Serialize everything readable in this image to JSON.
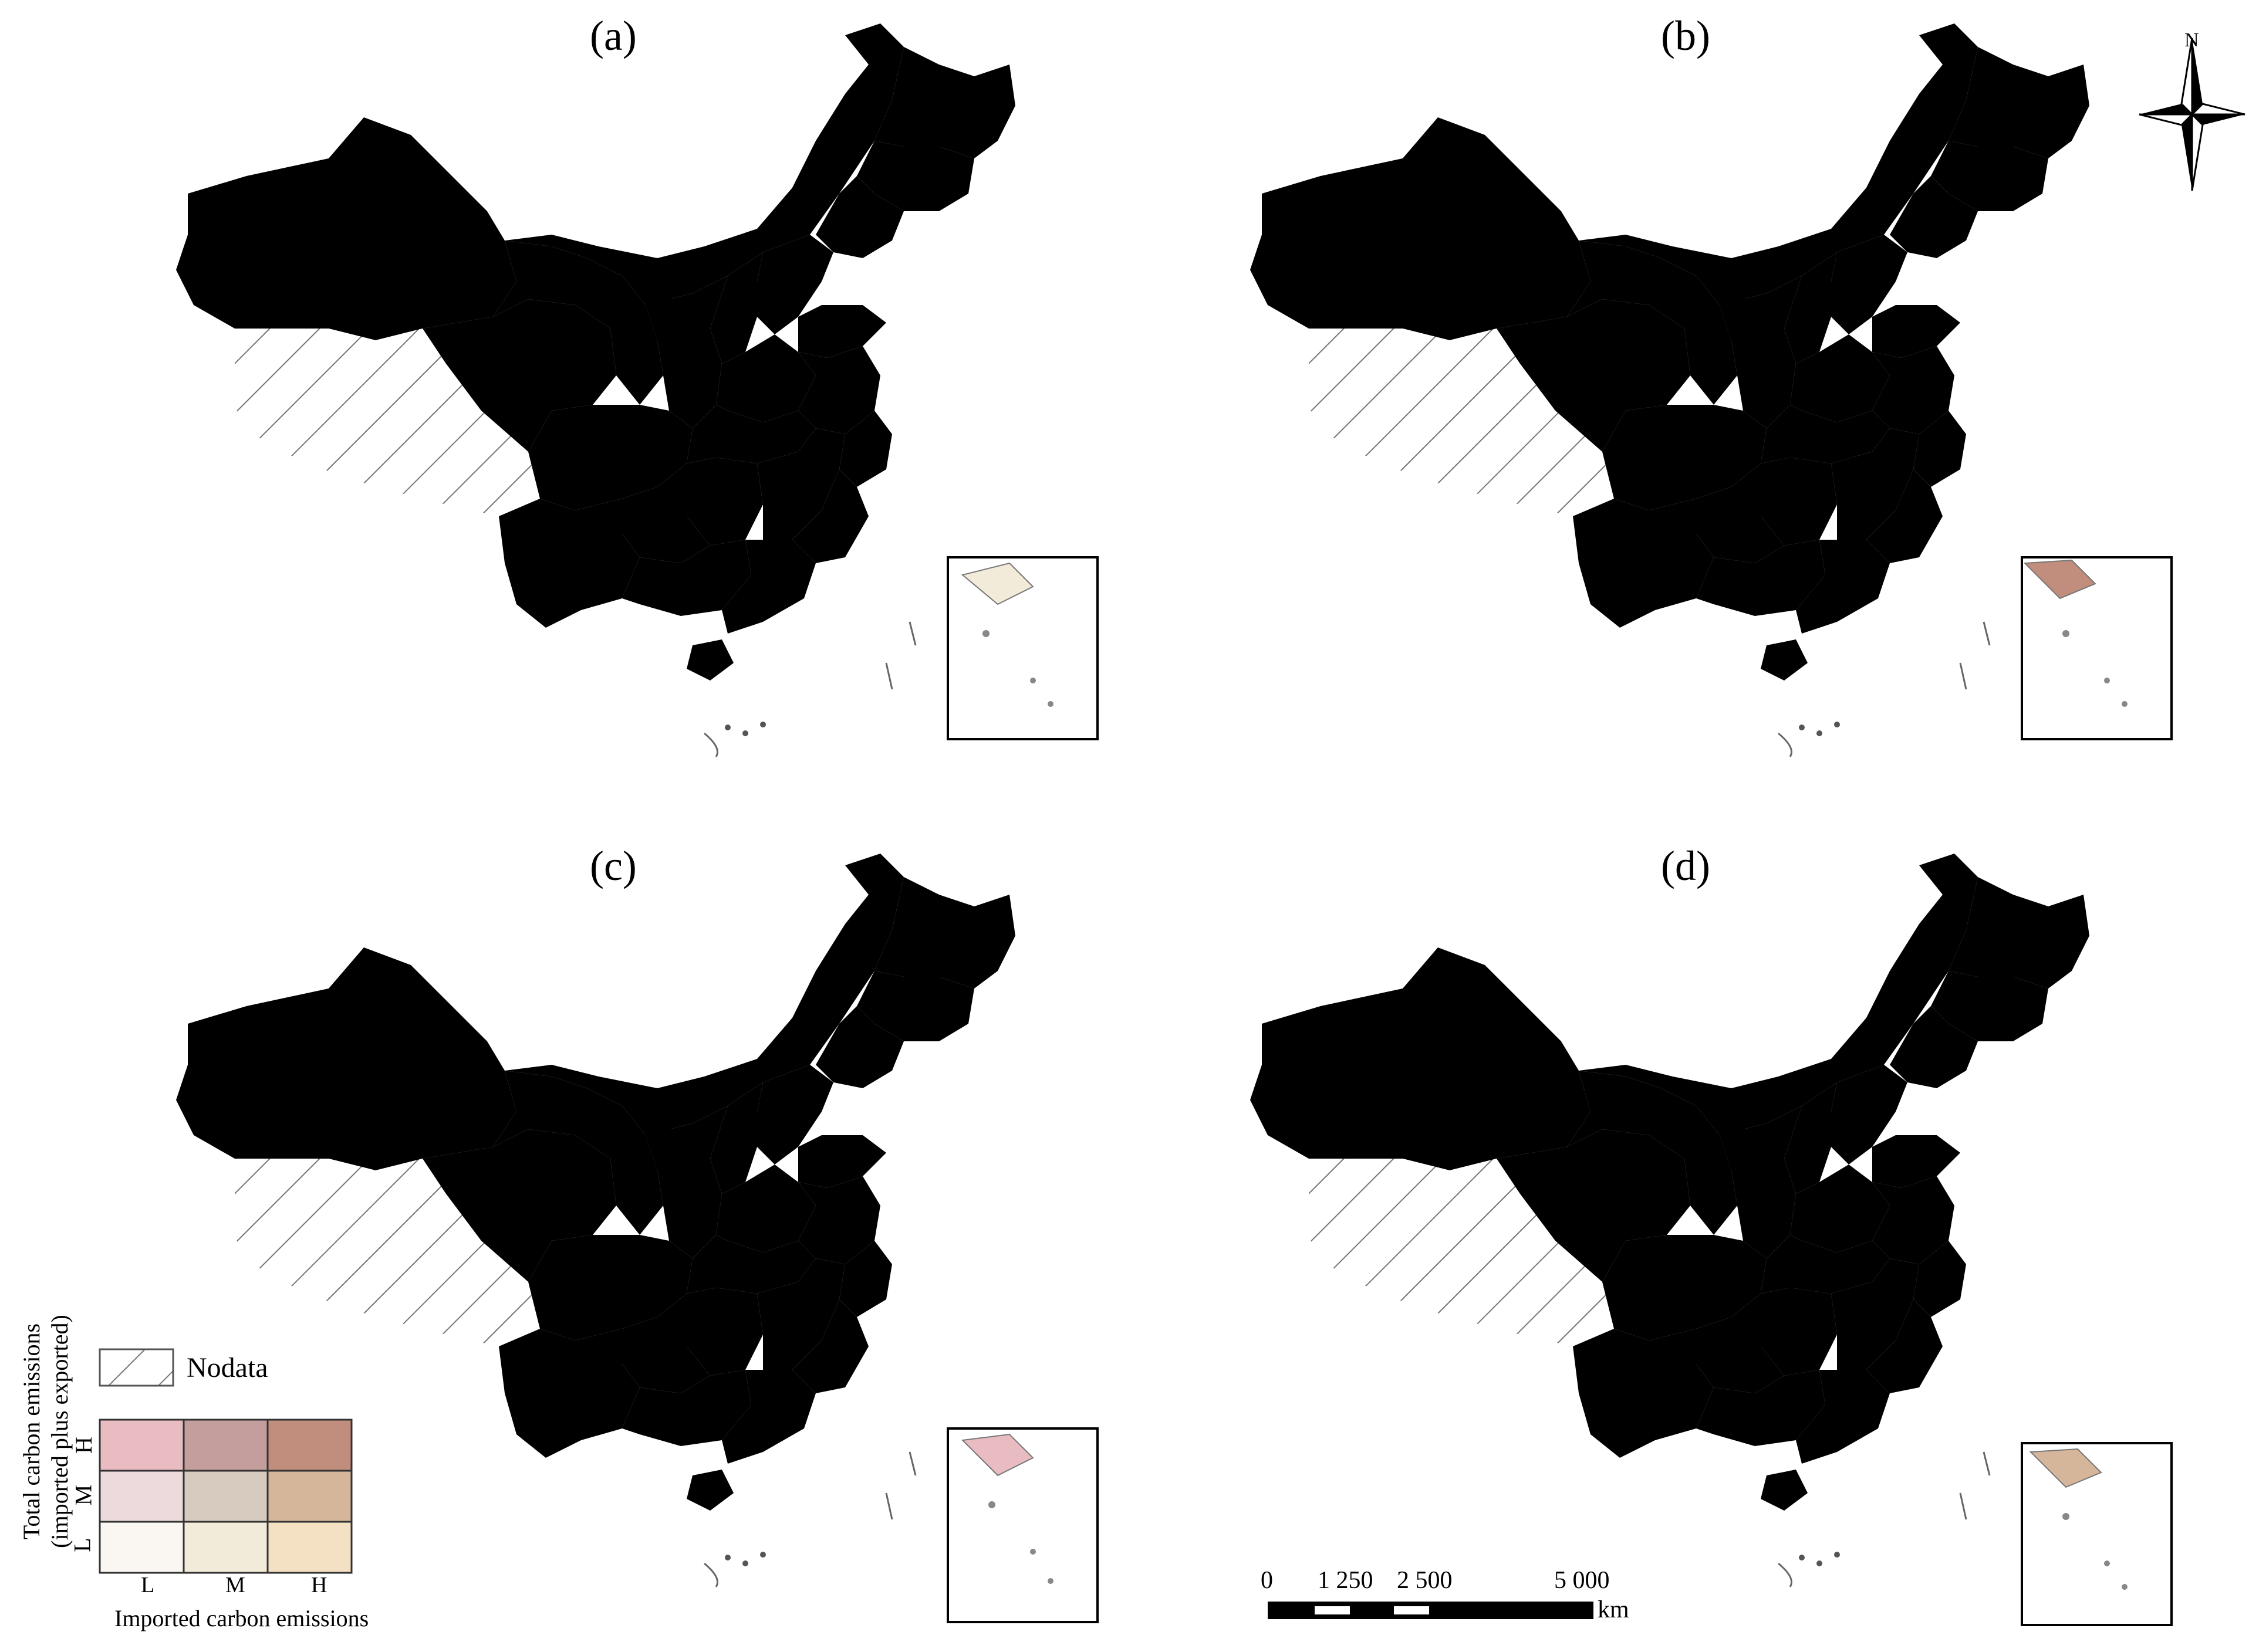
{
  "panels": [
    {
      "label": "(a)",
      "tone": "mixed-light"
    },
    {
      "label": "(b)",
      "tone": "mixed-dark"
    },
    {
      "label": "(c)",
      "tone": "mixed-medium"
    },
    {
      "label": "(d)",
      "tone": "mixed-pale"
    }
  ],
  "legend": {
    "nodata_label": "Nodata",
    "y_axis_title_line1": "Total carbon emissions",
    "y_axis_title_line2": "(imported plus exported)",
    "x_axis_title": "Imported carbon emissions",
    "row_levels": [
      "H",
      "M",
      "L"
    ],
    "col_levels": [
      "L",
      "M",
      "H"
    ],
    "colors": {
      "H-L": "#e8bcc0",
      "H-M": "#c39e9c",
      "H-H": "#c18d7c",
      "M-L": "#ecdadc",
      "M-M": "#d7cbbf",
      "M-H": "#d6b69a",
      "L-L": "#faf6f1",
      "L-M": "#f3ebd9",
      "L-H": "#f4e0c3"
    }
  },
  "scale_bar": {
    "ticks": [
      "0",
      "1 250",
      "2 500",
      "5 000"
    ],
    "unit": "km"
  },
  "compass": {
    "label": "N"
  }
}
